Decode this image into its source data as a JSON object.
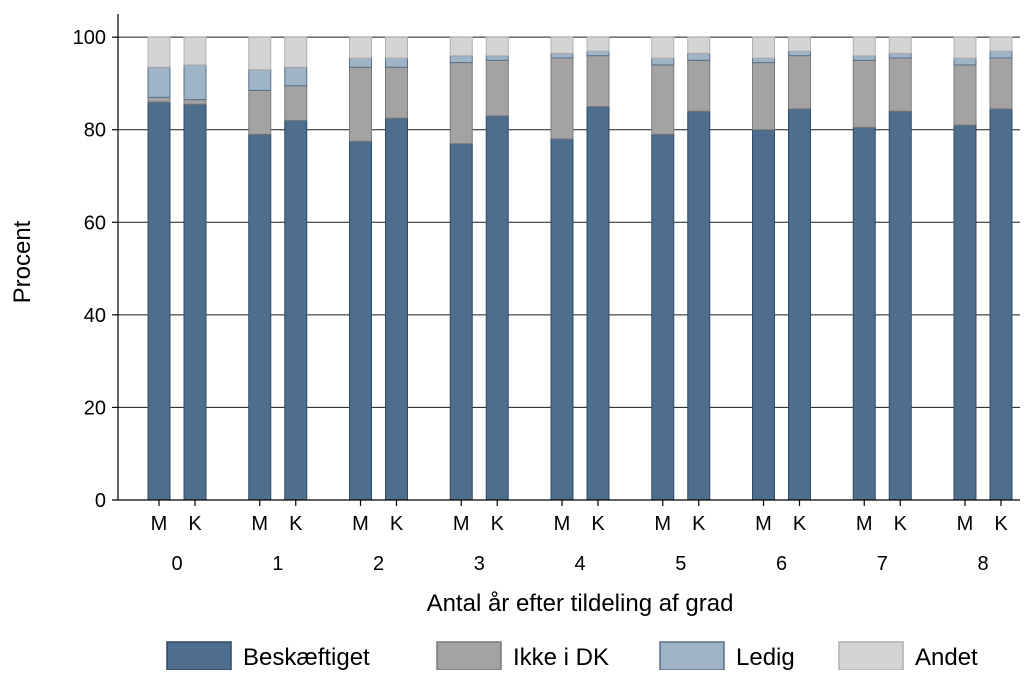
{
  "chart_data": {
    "type": "bar",
    "stacked": true,
    "ylabel": "Procent",
    "xlabel": "Antal år efter tildeling af grad",
    "ylim": [
      0,
      100
    ],
    "yticks": [
      0,
      20,
      40,
      60,
      80,
      100
    ],
    "grid": "horizontal",
    "legend_position": "bottom",
    "groups": [
      "0",
      "1",
      "2",
      "3",
      "4",
      "5",
      "6",
      "7",
      "8"
    ],
    "subcategories": [
      "M",
      "K"
    ],
    "categories": [
      "0 M",
      "0 K",
      "1 M",
      "1 K",
      "2 M",
      "2 K",
      "3 M",
      "3 K",
      "4 M",
      "4 K",
      "5 M",
      "5 K",
      "6 M",
      "6 K",
      "7 M",
      "7 K",
      "8 M",
      "8 K"
    ],
    "series": [
      {
        "name": "Beskæftiget",
        "color": "#4e6e8e",
        "edge": "#2f4a66",
        "values": [
          86,
          85.5,
          79,
          82,
          77.5,
          82.5,
          77,
          83,
          78,
          85,
          79,
          84,
          80,
          84.5,
          80.5,
          84,
          81,
          84.5
        ]
      },
      {
        "name": "Ikke i DK",
        "color": "#a3a3a3",
        "edge": "#7a7a7a",
        "values": [
          1,
          1,
          9.5,
          7.5,
          16,
          11,
          17.5,
          12,
          17.5,
          11,
          15,
          11,
          14.5,
          11.5,
          14.5,
          11.5,
          13,
          11
        ]
      },
      {
        "name": "Ledig",
        "color": "#a0b4c8",
        "edge": "#5a7088",
        "values": [
          6.5,
          7.5,
          4.5,
          4,
          2,
          2,
          1.5,
          1,
          1,
          1,
          1.5,
          1.5,
          1,
          1,
          1,
          1,
          1.5,
          1.5
        ]
      },
      {
        "name": "Andet",
        "color": "#d4d4d4",
        "edge": "#b0b0b0",
        "values": [
          6.5,
          6,
          7,
          6.5,
          4.5,
          4.5,
          4,
          4,
          3.5,
          3,
          4.5,
          3.5,
          4.5,
          3,
          4,
          3.5,
          4.5,
          3
        ]
      }
    ]
  }
}
